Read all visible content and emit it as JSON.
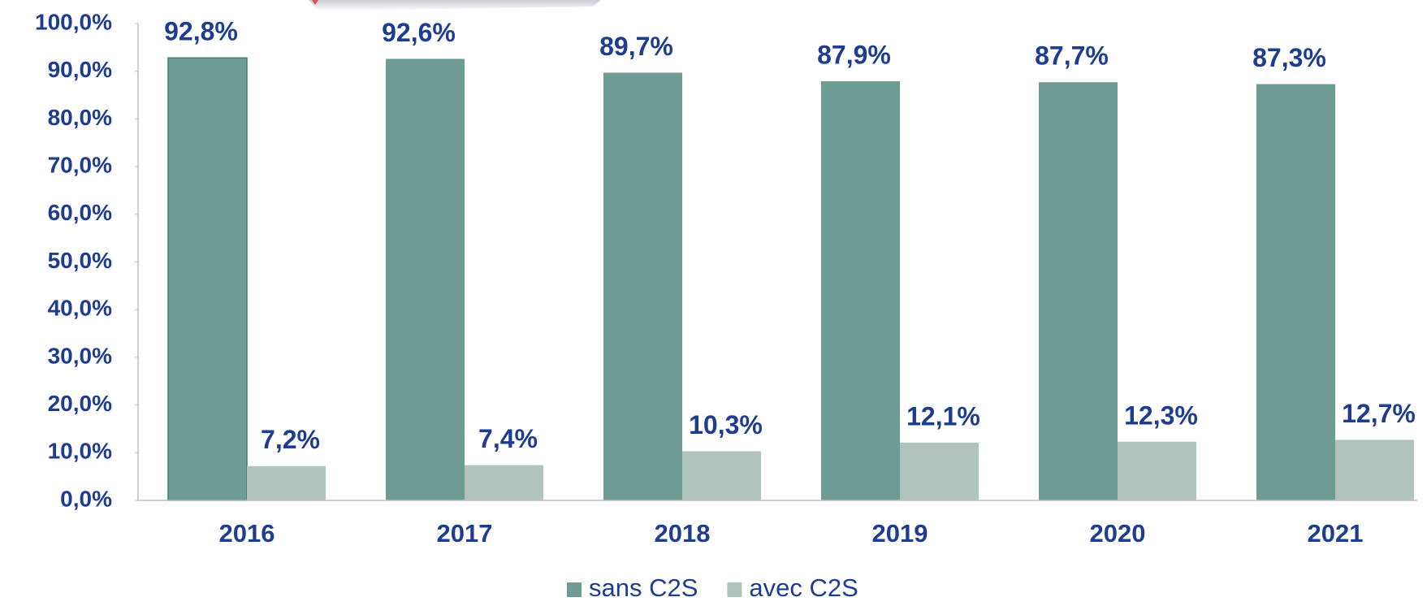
{
  "chart_data": {
    "type": "bar",
    "categories": [
      "2016",
      "2017",
      "2018",
      "2019",
      "2020",
      "2021"
    ],
    "series": [
      {
        "name": "sans C2S",
        "color": "#6e9c93",
        "values": [
          92.8,
          92.6,
          89.7,
          87.9,
          87.7,
          87.3
        ],
        "value_labels": [
          "92,8%",
          "92,6%",
          "89,7%",
          "87,9%",
          "87,7%",
          "87,3%"
        ]
      },
      {
        "name": "avec C2S",
        "color": "#b0c4bd",
        "values": [
          7.2,
          7.4,
          10.3,
          12.1,
          12.3,
          12.7
        ],
        "value_labels": [
          "7,2%",
          "7,4%",
          "10,3%",
          "12,1%",
          "12,3%",
          "12,7%"
        ]
      }
    ],
    "ylim": [
      0,
      100
    ],
    "yticks": [
      {
        "value": 0,
        "label": "0,0%"
      },
      {
        "value": 10,
        "label": "10,0%"
      },
      {
        "value": 20,
        "label": "20,0%"
      },
      {
        "value": 30,
        "label": "30,0%"
      },
      {
        "value": 40,
        "label": "40,0%"
      },
      {
        "value": 50,
        "label": "50,0%"
      },
      {
        "value": 60,
        "label": "60,0%"
      },
      {
        "value": 70,
        "label": "70,0%"
      },
      {
        "value": 80,
        "label": "80,0%"
      },
      {
        "value": 90,
        "label": "90,0%"
      },
      {
        "value": 100,
        "label": "100,0%"
      }
    ],
    "legend": "bottom"
  }
}
